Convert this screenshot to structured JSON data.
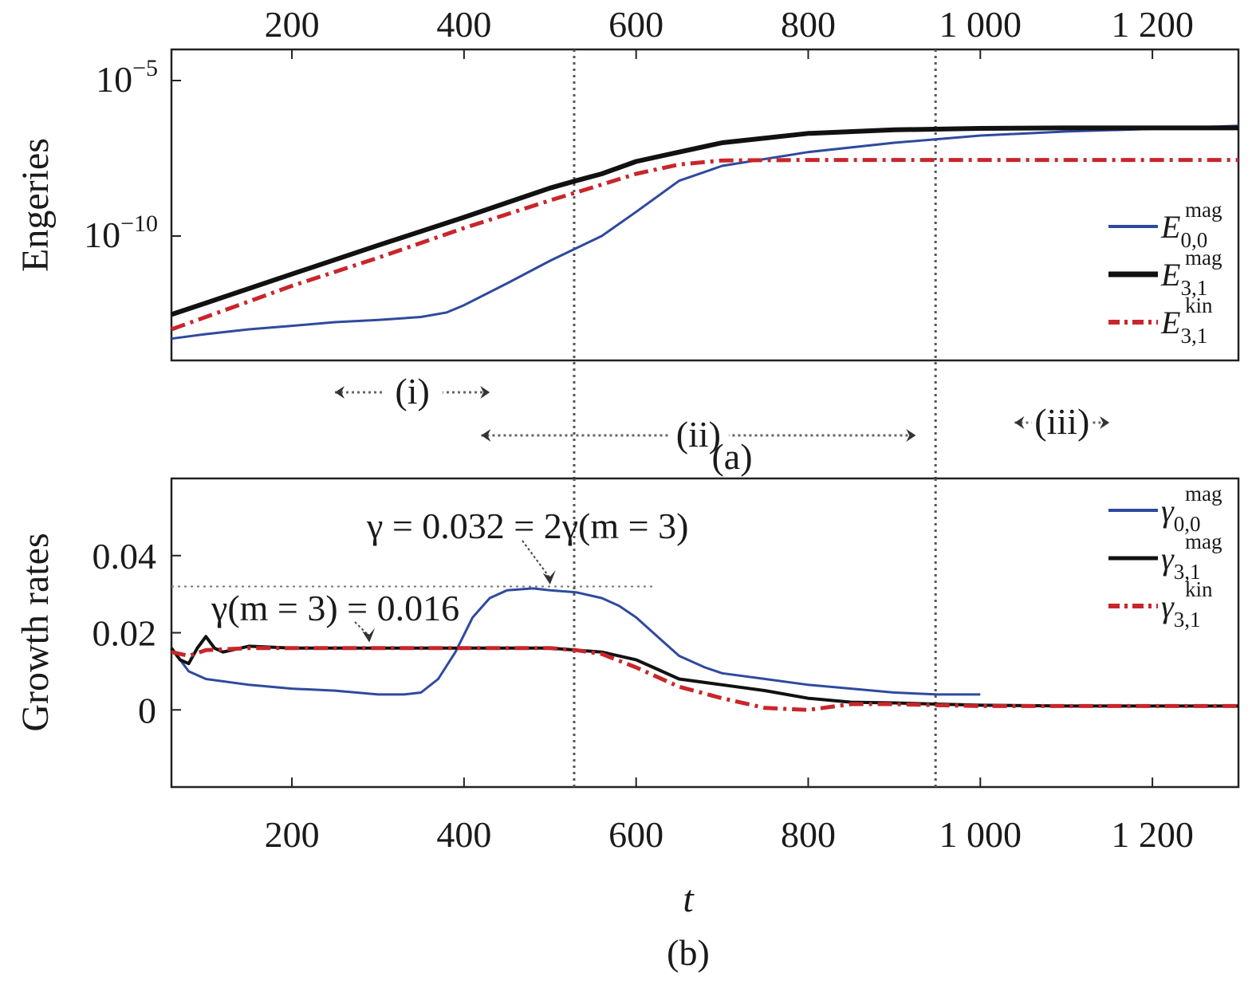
{
  "figure": {
    "panel_a_label": "(a)",
    "panel_b_label": "(b)",
    "phases": [
      {
        "label": "(i)",
        "t_start": 250,
        "t_end": 430
      },
      {
        "label": "(ii)",
        "t_start": 420,
        "t_end": 925
      },
      {
        "label": "(iii)",
        "t_start": 1040,
        "t_end": 1150
      }
    ],
    "vlines_t": [
      528,
      948
    ]
  },
  "chart_data": [
    {
      "type": "line",
      "panel": "(a)",
      "ylabel": "Engeries",
      "xlabel": "",
      "xlim": [
        60,
        1300
      ],
      "x_ticks": [
        200,
        400,
        600,
        800,
        1000,
        1200
      ],
      "x_tick_labels": [
        "200",
        "400",
        "600",
        "800",
        "1 000",
        "1 200"
      ],
      "x_tick_position": "top",
      "yscale": "log",
      "ylim": [
        1e-14,
        0.0001
      ],
      "y_ticks": [
        1e-10,
        1e-05
      ],
      "y_tick_labels": [
        {
          "base": "10",
          "exp": "−10"
        },
        {
          "base": "10",
          "exp": "−5"
        }
      ],
      "legend_position": "right",
      "series": [
        {
          "name": "E_{0,0}^{mag}",
          "legend": {
            "main": "E",
            "sub": "0,0",
            "sup": "mag"
          },
          "color": "#2e4a9e",
          "style": "solid",
          "width": 3,
          "x": [
            60,
            100,
            150,
            200,
            250,
            300,
            350,
            380,
            400,
            450,
            500,
            530,
            560,
            600,
            650,
            700,
            750,
            800,
            900,
            1000,
            1100,
            1200,
            1300
          ],
          "y": [
            5e-14,
            7e-14,
            1e-13,
            1.3e-13,
            1.7e-13,
            2e-13,
            2.5e-13,
            3.5e-13,
            6e-13,
            3e-12,
            1.6e-11,
            4e-11,
            1e-10,
            6e-10,
            6e-09,
            1.8e-08,
            3e-08,
            5e-08,
            1e-07,
            1.7e-07,
            2.3e-07,
            2.8e-07,
            3.5e-07
          ]
        },
        {
          "name": "E_{3,1}^{mag}",
          "legend": {
            "main": "E",
            "sub": "3,1",
            "sup": "mag"
          },
          "color": "#111111",
          "style": "solid",
          "width": 6,
          "x": [
            60,
            100,
            200,
            300,
            400,
            500,
            530,
            560,
            600,
            650,
            700,
            800,
            900,
            1000,
            1100,
            1200,
            1300
          ],
          "y": [
            3e-13,
            7e-13,
            6e-12,
            5e-11,
            4e-10,
            3.5e-09,
            6e-09,
            1e-08,
            2.5e-08,
            5e-08,
            1e-07,
            2e-07,
            2.6e-07,
            2.9e-07,
            3e-07,
            3e-07,
            3e-07
          ]
        },
        {
          "name": "E_{3,1}^{kin}",
          "legend": {
            "main": "E",
            "sub": "3,1",
            "sup": "kin"
          },
          "color": "#c8262c",
          "style": "dashdot",
          "width": 5,
          "x": [
            60,
            100,
            200,
            300,
            400,
            500,
            530,
            560,
            600,
            650,
            700,
            800,
            900,
            1000,
            1100,
            1200,
            1300
          ],
          "y": [
            1e-13,
            2.5e-13,
            2.5e-12,
            2e-11,
            1.8e-10,
            1.4e-09,
            2.5e-09,
            4.5e-09,
            1e-08,
            2e-08,
            2.7e-08,
            2.8e-08,
            2.8e-08,
            2.8e-08,
            2.8e-08,
            2.8e-08,
            2.8e-08
          ]
        }
      ]
    },
    {
      "type": "line",
      "panel": "(b)",
      "xlabel": "t",
      "ylabel": "Growth rates",
      "xlim": [
        60,
        1300
      ],
      "x_ticks": [
        200,
        400,
        600,
        800,
        1000,
        1200
      ],
      "x_tick_labels": [
        "200",
        "400",
        "600",
        "800",
        "1 000",
        "1 200"
      ],
      "ylim": [
        -0.02,
        0.06
      ],
      "y_ticks": [
        0,
        0.02,
        0.04
      ],
      "y_tick_labels": [
        "0",
        "0.02",
        "0.04"
      ],
      "legend_position": "right",
      "series": [
        {
          "name": "γ_{0,0}^{mag}",
          "legend": {
            "main": "γ",
            "sub": "0,0",
            "sup": "mag"
          },
          "color": "#2e4a9e",
          "style": "solid",
          "width": 3,
          "x": [
            60,
            80,
            100,
            150,
            200,
            250,
            300,
            330,
            350,
            370,
            390,
            410,
            430,
            450,
            480,
            500,
            530,
            560,
            580,
            600,
            630,
            650,
            680,
            700,
            750,
            800,
            850,
            900,
            950,
            1000
          ],
          "y": [
            0.016,
            0.01,
            0.008,
            0.0065,
            0.0055,
            0.005,
            0.004,
            0.004,
            0.0045,
            0.008,
            0.015,
            0.024,
            0.029,
            0.031,
            0.0315,
            0.031,
            0.0305,
            0.029,
            0.027,
            0.024,
            0.018,
            0.014,
            0.011,
            0.0095,
            0.008,
            0.0065,
            0.0055,
            0.0045,
            0.004,
            0.004
          ]
        },
        {
          "name": "γ_{3,1}^{mag}",
          "legend": {
            "main": "γ",
            "sub": "3,1",
            "sup": "mag"
          },
          "color": "#111111",
          "style": "solid",
          "width": 4,
          "x": [
            60,
            70,
            80,
            90,
            100,
            110,
            120,
            150,
            200,
            300,
            400,
            500,
            530,
            560,
            600,
            620,
            650,
            700,
            750,
            800,
            850,
            900,
            950,
            1000,
            1100,
            1200,
            1300
          ],
          "y": [
            0.016,
            0.013,
            0.012,
            0.016,
            0.019,
            0.016,
            0.015,
            0.0165,
            0.016,
            0.016,
            0.016,
            0.016,
            0.0155,
            0.015,
            0.013,
            0.011,
            0.008,
            0.0065,
            0.005,
            0.003,
            0.002,
            0.0018,
            0.0015,
            0.0012,
            0.001,
            0.001,
            0.001
          ]
        },
        {
          "name": "γ_{3,1}^{kin}",
          "legend": {
            "main": "γ",
            "sub": "3,1",
            "sup": "kin"
          },
          "color": "#c8262c",
          "style": "dashdot",
          "width": 5,
          "x": [
            60,
            80,
            100,
            150,
            200,
            300,
            400,
            500,
            530,
            560,
            600,
            650,
            700,
            750,
            800,
            850,
            900,
            950,
            1000,
            1100,
            1200,
            1300
          ],
          "y": [
            0.015,
            0.014,
            0.0155,
            0.016,
            0.016,
            0.016,
            0.016,
            0.016,
            0.0155,
            0.0145,
            0.011,
            0.006,
            0.003,
            0.0005,
            0,
            0.0015,
            0.0015,
            0.0012,
            0.001,
            0.001,
            0.001,
            0.001
          ]
        }
      ],
      "reference_line": {
        "y": 0.032,
        "x_start": 60,
        "x_end": 620
      },
      "annotations": [
        {
          "text": "γ = 0.032 = 2γ(m = 3)",
          "arrow_to": {
            "x": 500,
            "y": 0.0325
          }
        },
        {
          "text": "γ(m = 3) = 0.016",
          "arrow_to": {
            "x": 290,
            "y": 0.0175
          }
        }
      ]
    }
  ]
}
